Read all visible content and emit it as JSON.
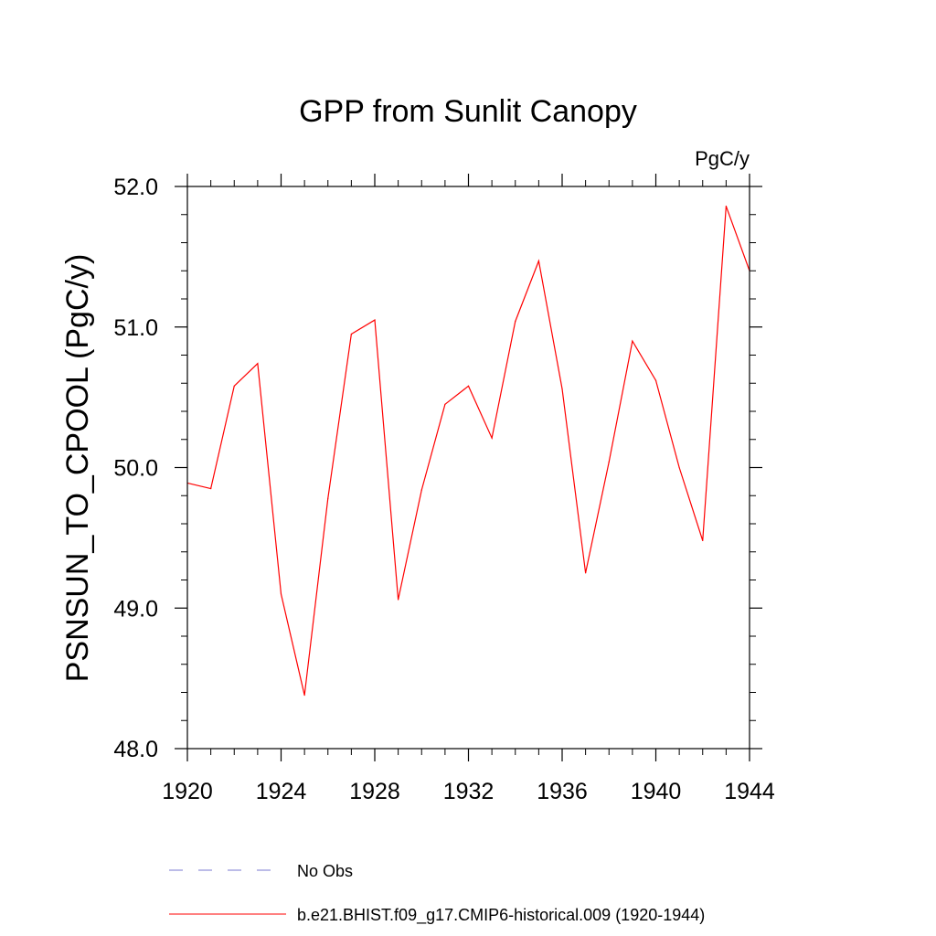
{
  "chart_data": {
    "type": "line",
    "title": "GPP from Sunlit Canopy",
    "units_label": "PgC/y",
    "ylabel": "PSNSUN_TO_CPOOL  (PgC/y)",
    "xlabel": "",
    "xlim": [
      1920,
      1944
    ],
    "ylim": [
      48.0,
      52.0
    ],
    "x_ticks": [
      1920,
      1924,
      1928,
      1932,
      1936,
      1940,
      1944
    ],
    "x_tick_labels": [
      "1920",
      "1924",
      "1928",
      "1932",
      "1936",
      "1940",
      "1944"
    ],
    "y_ticks": [
      48.0,
      49.0,
      50.0,
      51.0,
      52.0
    ],
    "y_tick_labels": [
      "48.0",
      "49.0",
      "50.0",
      "51.0",
      "52.0"
    ],
    "grid": false,
    "series": [
      {
        "name": "b.e21.BHIST.f09_g17.CMIP6-historical.009 (1920-1944)",
        "color": "#ff0000",
        "x": [
          1920,
          1921,
          1922,
          1923,
          1924,
          1925,
          1926,
          1927,
          1928,
          1929,
          1930,
          1931,
          1932,
          1933,
          1934,
          1935,
          1936,
          1937,
          1938,
          1939,
          1940,
          1941,
          1942,
          1943,
          1944
        ],
        "values": [
          49.89,
          49.85,
          50.58,
          50.74,
          49.1,
          48.38,
          49.78,
          50.95,
          51.05,
          49.06,
          49.84,
          50.45,
          50.58,
          50.21,
          51.04,
          51.47,
          50.56,
          49.25,
          50.04,
          50.9,
          50.62,
          50.0,
          49.48,
          51.86,
          51.4
        ]
      }
    ],
    "legend": [
      {
        "label": "No Obs",
        "color": "#7a7ad0",
        "style": "dashed"
      },
      {
        "label": "b.e21.BHIST.f09_g17.CMIP6-historical.009 (1920-1944)",
        "color": "#ff0000",
        "style": "solid"
      }
    ]
  }
}
